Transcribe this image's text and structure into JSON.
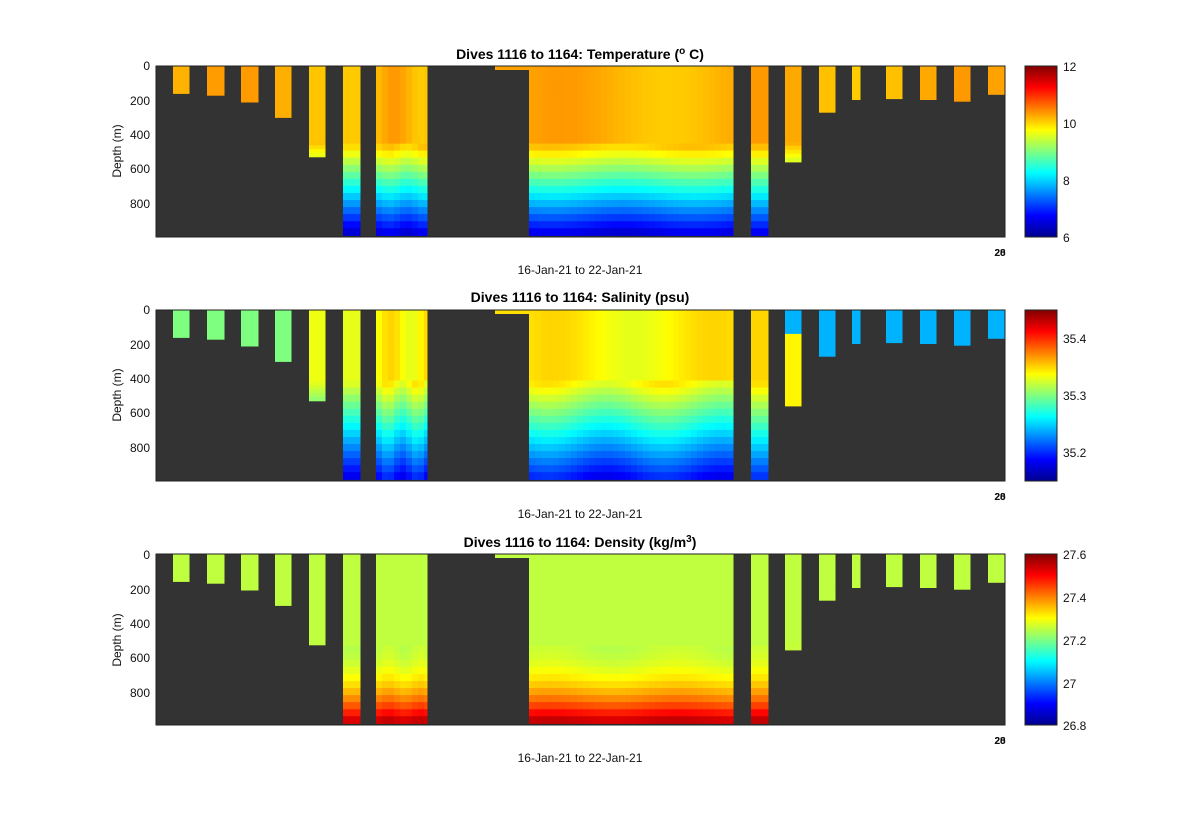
{
  "figure": {
    "corner_label": "28",
    "corner_label_overlay": "20"
  },
  "chart_data": [
    {
      "type": "heatmap",
      "variable": "temperature",
      "title": "Dives 1116 to 1164: Temperature (",
      "title_sup": "o",
      "title_suffix": " C)",
      "xlabel": "16-Jan-21 to 22-Jan-21",
      "ylabel": "Depth (m)",
      "y_ticks": [
        "0",
        "200",
        "400",
        "600",
        "800"
      ],
      "ylim": [
        1000,
        0
      ],
      "colorbar_ticks": [
        "12",
        "10",
        "8",
        "6"
      ],
      "colorbar_range": [
        6,
        12
      ],
      "colormap": "jet",
      "background": "#333333",
      "profile_depths": [
        160,
        170,
        210,
        300,
        530,
        990,
        990,
        0,
        0,
        0,
        990,
        990,
        560,
        270,
        195,
        190,
        195,
        205,
        165
      ],
      "surface_value": 10.2,
      "deep_value": 6.6
    },
    {
      "type": "heatmap",
      "variable": "salinity",
      "title": "Dives 1116 to 1164: Salinity (psu)",
      "xlabel": "16-Jan-21 to 22-Jan-21",
      "ylabel": "Depth (m)",
      "y_ticks": [
        "0",
        "200",
        "400",
        "600",
        "800"
      ],
      "ylim": [
        1000,
        0
      ],
      "colorbar_ticks": [
        "35.4",
        "35.3",
        "35.2"
      ],
      "colorbar_range": [
        35.15,
        35.45
      ],
      "colormap": "jet",
      "background": "#333333",
      "shallow_value": 35.3,
      "mid_value": 35.34,
      "deep_value": 35.19,
      "late_value": 35.24
    },
    {
      "type": "heatmap",
      "variable": "density",
      "title": "Dives 1116 to 1164: Density (kg/m",
      "title_sup": "3",
      "title_suffix": ")",
      "xlabel": "16-Jan-21 to 22-Jan-21",
      "ylabel": "Depth (m)",
      "y_ticks": [
        "0",
        "200",
        "400",
        "600",
        "800"
      ],
      "ylim": [
        1000,
        0
      ],
      "colorbar_ticks": [
        "27.6",
        "27.4",
        "27.2",
        "27",
        "26.8"
      ],
      "colorbar_range": [
        26.8,
        27.6
      ],
      "colormap": "jet",
      "background": "#333333",
      "surface_value": 27.25,
      "deep_value": 27.55
    }
  ]
}
